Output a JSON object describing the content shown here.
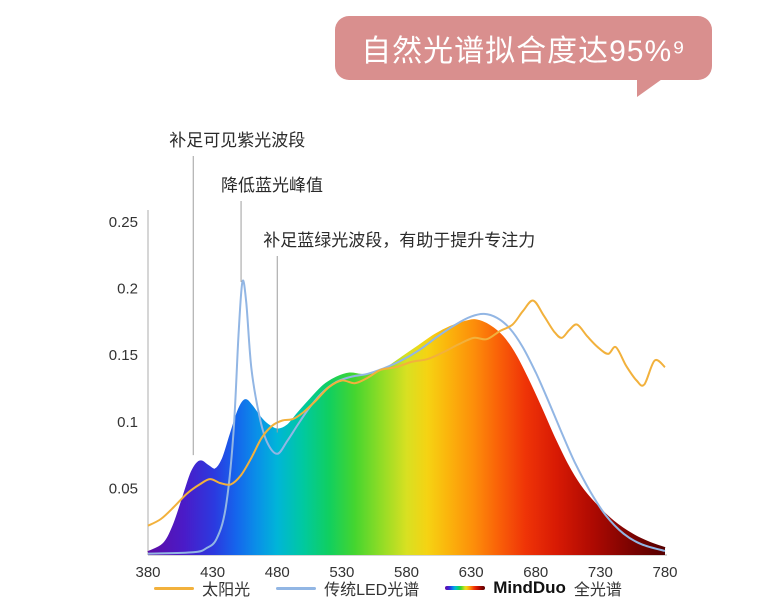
{
  "badge": {
    "text": "自然光谱拟合度达95%⁹",
    "color": "#D98F8E",
    "text_color": "#FFFFFF"
  },
  "chart_data": {
    "type": "area",
    "title": "",
    "xlabel": "",
    "ylabel": "",
    "grid": false,
    "legend_position": "bottom",
    "x_range": [
      380,
      780
    ],
    "y_range": [
      0,
      0.25
    ],
    "x_ticks": [
      "380",
      "430",
      "480",
      "530",
      "580",
      "630",
      "680",
      "730",
      "780"
    ],
    "y_ticks": [
      "0.05",
      "0.1",
      "0.15",
      "0.2",
      "0.25"
    ],
    "axis_color": "#c9c9c9",
    "tick_text_color": "#333333",
    "annotation_line_color": "#9e9e9e",
    "annotation_text_color": "#2a2a2a",
    "series": [
      {
        "name": "太阳光",
        "type": "line",
        "color": "#F2B13C",
        "points": [
          [
            380,
            0.022
          ],
          [
            390,
            0.027
          ],
          [
            400,
            0.036
          ],
          [
            410,
            0.046
          ],
          [
            420,
            0.053
          ],
          [
            428,
            0.057
          ],
          [
            436,
            0.054
          ],
          [
            444,
            0.053
          ],
          [
            452,
            0.06
          ],
          [
            460,
            0.073
          ],
          [
            468,
            0.088
          ],
          [
            476,
            0.097
          ],
          [
            484,
            0.101
          ],
          [
            492,
            0.102
          ],
          [
            500,
            0.107
          ],
          [
            510,
            0.116
          ],
          [
            520,
            0.126
          ],
          [
            530,
            0.131
          ],
          [
            540,
            0.129
          ],
          [
            550,
            0.133
          ],
          [
            560,
            0.139
          ],
          [
            572,
            0.141
          ],
          [
            584,
            0.145
          ],
          [
            596,
            0.147
          ],
          [
            608,
            0.152
          ],
          [
            620,
            0.158
          ],
          [
            632,
            0.163
          ],
          [
            642,
            0.162
          ],
          [
            652,
            0.168
          ],
          [
            662,
            0.173
          ],
          [
            670,
            0.183
          ],
          [
            678,
            0.191
          ],
          [
            686,
            0.18
          ],
          [
            694,
            0.168
          ],
          [
            700,
            0.163
          ],
          [
            706,
            0.169
          ],
          [
            712,
            0.173
          ],
          [
            720,
            0.164
          ],
          [
            728,
            0.156
          ],
          [
            736,
            0.151
          ],
          [
            742,
            0.156
          ],
          [
            750,
            0.142
          ],
          [
            758,
            0.131
          ],
          [
            764,
            0.128
          ],
          [
            772,
            0.146
          ],
          [
            780,
            0.141
          ]
        ]
      },
      {
        "name": "传统LED光谱",
        "type": "line",
        "color": "#92B6E4",
        "points": [
          [
            380,
            0.001
          ],
          [
            415,
            0.002
          ],
          [
            425,
            0.005
          ],
          [
            433,
            0.012
          ],
          [
            440,
            0.035
          ],
          [
            446,
            0.09
          ],
          [
            450,
            0.165
          ],
          [
            453,
            0.205
          ],
          [
            456,
            0.19
          ],
          [
            460,
            0.14
          ],
          [
            466,
            0.105
          ],
          [
            472,
            0.085
          ],
          [
            480,
            0.076
          ],
          [
            488,
            0.086
          ],
          [
            496,
            0.098
          ],
          [
            506,
            0.112
          ],
          [
            516,
            0.123
          ],
          [
            526,
            0.13
          ],
          [
            538,
            0.134
          ],
          [
            550,
            0.136
          ],
          [
            562,
            0.14
          ],
          [
            576,
            0.146
          ],
          [
            590,
            0.154
          ],
          [
            604,
            0.164
          ],
          [
            618,
            0.173
          ],
          [
            630,
            0.179
          ],
          [
            640,
            0.181
          ],
          [
            650,
            0.178
          ],
          [
            660,
            0.17
          ],
          [
            670,
            0.156
          ],
          [
            680,
            0.137
          ],
          [
            690,
            0.115
          ],
          [
            700,
            0.092
          ],
          [
            710,
            0.07
          ],
          [
            722,
            0.048
          ],
          [
            734,
            0.03
          ],
          [
            748,
            0.016
          ],
          [
            762,
            0.008
          ],
          [
            780,
            0.003
          ]
        ]
      },
      {
        "name": "MindDuo 全光谱",
        "type": "area",
        "stroke": "spectrum-gradient",
        "points": [
          [
            380,
            0.002
          ],
          [
            392,
            0.008
          ],
          [
            400,
            0.022
          ],
          [
            408,
            0.045
          ],
          [
            414,
            0.062
          ],
          [
            420,
            0.07
          ],
          [
            426,
            0.067
          ],
          [
            432,
            0.064
          ],
          [
            438,
            0.072
          ],
          [
            444,
            0.09
          ],
          [
            450,
            0.108
          ],
          [
            455,
            0.116
          ],
          [
            460,
            0.112
          ],
          [
            466,
            0.104
          ],
          [
            472,
            0.098
          ],
          [
            480,
            0.094
          ],
          [
            488,
            0.097
          ],
          [
            496,
            0.106
          ],
          [
            506,
            0.117
          ],
          [
            516,
            0.127
          ],
          [
            526,
            0.133
          ],
          [
            536,
            0.136
          ],
          [
            546,
            0.135
          ],
          [
            556,
            0.136
          ],
          [
            566,
            0.141
          ],
          [
            578,
            0.149
          ],
          [
            590,
            0.157
          ],
          [
            602,
            0.165
          ],
          [
            614,
            0.171
          ],
          [
            626,
            0.175
          ],
          [
            634,
            0.176
          ],
          [
            644,
            0.172
          ],
          [
            654,
            0.164
          ],
          [
            664,
            0.15
          ],
          [
            674,
            0.131
          ],
          [
            684,
            0.11
          ],
          [
            694,
            0.088
          ],
          [
            704,
            0.068
          ],
          [
            714,
            0.052
          ],
          [
            726,
            0.038
          ],
          [
            740,
            0.025
          ],
          [
            755,
            0.015
          ],
          [
            768,
            0.009
          ],
          [
            780,
            0.005
          ]
        ]
      }
    ],
    "spectrum_gradient": [
      {
        "offset": 0.0,
        "color": "#5E0DA5"
      },
      {
        "offset": 0.07,
        "color": "#4A1BC8"
      },
      {
        "offset": 0.13,
        "color": "#2A3BE0"
      },
      {
        "offset": 0.17,
        "color": "#1565EC"
      },
      {
        "offset": 0.21,
        "color": "#0A8FE8"
      },
      {
        "offset": 0.25,
        "color": "#00B5D8"
      },
      {
        "offset": 0.3,
        "color": "#00C9A0"
      },
      {
        "offset": 0.35,
        "color": "#10CF60"
      },
      {
        "offset": 0.4,
        "color": "#45D52F"
      },
      {
        "offset": 0.45,
        "color": "#8FDC26"
      },
      {
        "offset": 0.5,
        "color": "#D8E022"
      },
      {
        "offset": 0.54,
        "color": "#F5D313"
      },
      {
        "offset": 0.58,
        "color": "#FBB50C"
      },
      {
        "offset": 0.63,
        "color": "#FD8E0A"
      },
      {
        "offset": 0.68,
        "color": "#F95F08"
      },
      {
        "offset": 0.73,
        "color": "#EF3407"
      },
      {
        "offset": 0.79,
        "color": "#D81A04"
      },
      {
        "offset": 0.86,
        "color": "#AE0A02"
      },
      {
        "offset": 0.93,
        "color": "#7E0301"
      },
      {
        "offset": 1.0,
        "color": "#550000"
      }
    ],
    "annotations": [
      {
        "label": "补足可见紫光波段",
        "wavelength": 415,
        "end_value": 0.075
      },
      {
        "label": "降低蓝光峰值",
        "wavelength": 452,
        "end_value": 0.205
      },
      {
        "label": "补足蓝绿光波段，有助于提升专注力",
        "wavelength": 480,
        "end_value": 0.092
      }
    ]
  },
  "legend": {
    "items": [
      {
        "label": "太阳光",
        "swatch": "sun"
      },
      {
        "label": "传统LED光谱",
        "swatch": "led"
      },
      {
        "brand": "MindDuo",
        "label": "全光谱",
        "swatch": "spectrum"
      }
    ]
  }
}
